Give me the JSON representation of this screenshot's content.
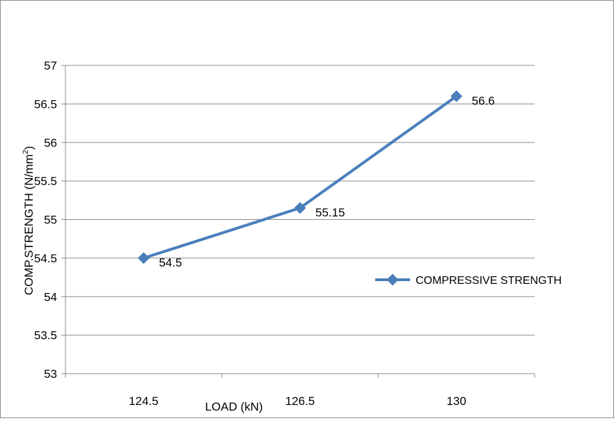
{
  "chart_data": {
    "type": "line",
    "categories": [
      "124.5",
      "126.5",
      "130"
    ],
    "series": [
      {
        "name": "COMPRESSIVE  STRENGTH",
        "values": [
          54.5,
          55.15,
          56.6
        ],
        "labels": [
          "54.5",
          "55.15",
          "56.6"
        ],
        "color": "#4a7ebb"
      }
    ],
    "xlabel": "LOAD (kN)",
    "ylabel": "COMP.STRENGTH (N/mm",
    "ylabel_sup": "2",
    "ylabel_suffix": ")",
    "ylim": [
      53,
      57
    ],
    "yticks": [
      "53",
      "53.5",
      "54",
      "54.5",
      "55",
      "55.5",
      "56",
      "56.5",
      "57"
    ],
    "grid": true,
    "legend_position": "right"
  }
}
